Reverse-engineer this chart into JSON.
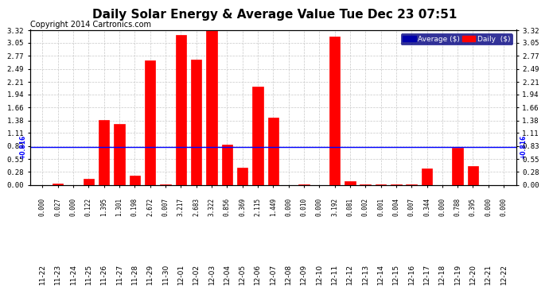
{
  "title": "Daily Solar Energy & Average Value Tue Dec 23 07:51",
  "copyright": "Copyright 2014 Cartronics.com",
  "categories": [
    "11-22",
    "11-23",
    "11-24",
    "11-25",
    "11-26",
    "11-27",
    "11-28",
    "11-29",
    "11-30",
    "12-01",
    "12-02",
    "12-03",
    "12-04",
    "12-05",
    "12-06",
    "12-07",
    "12-08",
    "12-09",
    "12-10",
    "12-11",
    "12-12",
    "12-13",
    "12-14",
    "12-15",
    "12-16",
    "12-17",
    "12-18",
    "12-19",
    "12-20",
    "12-21",
    "12-22"
  ],
  "values": [
    0.0,
    0.027,
    0.0,
    0.122,
    1.395,
    1.301,
    0.198,
    2.672,
    0.007,
    3.217,
    2.683,
    3.322,
    0.856,
    0.369,
    2.115,
    1.449,
    0.0,
    0.01,
    0.0,
    3.192,
    0.081,
    0.002,
    0.001,
    0.004,
    0.007,
    0.344,
    0.0,
    0.788,
    0.395,
    0.0,
    0.0
  ],
  "average_value": 0.816,
  "bar_color": "#ff0000",
  "average_line_color": "#0000ff",
  "background_color": "#ffffff",
  "grid_color": "#c8c8c8",
  "title_color": "#000000",
  "copyright_color": "#000000",
  "value_label_color": "#000000",
  "ylim_min": 0.0,
  "ylim_max": 3.32,
  "yticks": [
    0.0,
    0.28,
    0.55,
    0.83,
    1.11,
    1.38,
    1.66,
    1.94,
    2.21,
    2.49,
    2.77,
    3.05,
    3.32
  ],
  "title_fontsize": 11,
  "copyright_fontsize": 7,
  "tick_fontsize": 6.5,
  "value_label_fontsize": 5.5,
  "average_label_text": "+0.816",
  "legend_avg_label": "Average ($)",
  "legend_daily_label": "Daily  ($)",
  "legend_avg_color": "#0000aa",
  "legend_daily_color": "#ff0000",
  "legend_bg_color": "#000080",
  "legend_text_color": "#ffffff"
}
